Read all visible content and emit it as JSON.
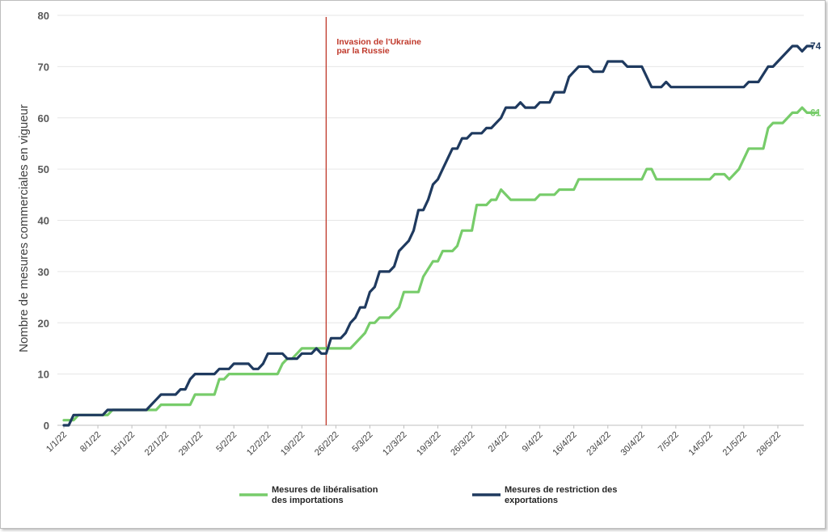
{
  "chart_data": {
    "type": "line",
    "ylabel": "Nombre de mesures commerciales en vigueur",
    "xlabel": "",
    "ylim": [
      0,
      80
    ],
    "y_ticks": [
      0,
      10,
      20,
      30,
      40,
      50,
      60,
      70,
      80
    ],
    "grid": "horizontal",
    "x_start": "2022-01-01",
    "x_end": "2022-06-01",
    "x_tick_labels": [
      "1/1/22",
      "8/1/22",
      "15/1/22",
      "22/1/22",
      "29/1/22",
      "5/2/22",
      "12/2/22",
      "19/2/22",
      "26/2/22",
      "5/3/22",
      "12/3/22",
      "19/3/22",
      "26/3/22",
      "2/4/22",
      "9/4/22",
      "16/4/22",
      "23/4/22",
      "30/4/22",
      "7/5/22",
      "14/5/22",
      "21/5/22",
      "28/5/22"
    ],
    "x_tick_dates": [
      "2022-01-01",
      "2022-01-08",
      "2022-01-15",
      "2022-01-22",
      "2022-01-29",
      "2022-02-05",
      "2022-02-12",
      "2022-02-19",
      "2022-02-26",
      "2022-03-05",
      "2022-03-12",
      "2022-03-19",
      "2022-03-26",
      "2022-04-02",
      "2022-04-09",
      "2022-04-16",
      "2022-04-23",
      "2022-04-30",
      "2022-05-07",
      "2022-05-14",
      "2022-05-21",
      "2022-05-28"
    ],
    "annotation": {
      "date": "2022-02-24",
      "lines": [
        "Invasion de l'Ukraine",
        "par la Russie"
      ],
      "color": "#c0392b"
    },
    "legend_position": "bottom",
    "series": [
      {
        "name": "Mesures de libéralisation des importations",
        "legend_lines": [
          "Mesures de libéralisation",
          "des importations"
        ],
        "color": "#77cc6a",
        "end_label": "61",
        "points": [
          [
            "2022-01-01",
            1
          ],
          [
            "2022-01-03",
            1
          ],
          [
            "2022-01-04",
            2
          ],
          [
            "2022-01-10",
            2
          ],
          [
            "2022-01-11",
            3
          ],
          [
            "2022-01-20",
            3
          ],
          [
            "2022-01-21",
            4
          ],
          [
            "2022-01-27",
            4
          ],
          [
            "2022-01-28",
            6
          ],
          [
            "2022-02-01",
            6
          ],
          [
            "2022-02-02",
            9
          ],
          [
            "2022-02-03",
            9
          ],
          [
            "2022-02-04",
            10
          ],
          [
            "2022-02-14",
            10
          ],
          [
            "2022-02-15",
            12
          ],
          [
            "2022-02-16",
            13
          ],
          [
            "2022-02-17",
            13
          ],
          [
            "2022-02-18",
            14
          ],
          [
            "2022-02-19",
            15
          ],
          [
            "2022-02-24",
            15
          ],
          [
            "2022-03-01",
            15
          ],
          [
            "2022-03-02",
            16
          ],
          [
            "2022-03-04",
            18
          ],
          [
            "2022-03-05",
            20
          ],
          [
            "2022-03-06",
            20
          ],
          [
            "2022-03-07",
            21
          ],
          [
            "2022-03-09",
            21
          ],
          [
            "2022-03-11",
            23
          ],
          [
            "2022-03-12",
            26
          ],
          [
            "2022-03-15",
            26
          ],
          [
            "2022-03-16",
            29
          ],
          [
            "2022-03-18",
            32
          ],
          [
            "2022-03-19",
            32
          ],
          [
            "2022-03-20",
            34
          ],
          [
            "2022-03-22",
            34
          ],
          [
            "2022-03-23",
            35
          ],
          [
            "2022-03-24",
            38
          ],
          [
            "2022-03-26",
            38
          ],
          [
            "2022-03-27",
            43
          ],
          [
            "2022-03-29",
            43
          ],
          [
            "2022-03-30",
            44
          ],
          [
            "2022-03-31",
            44
          ],
          [
            "2022-04-01",
            46
          ],
          [
            "2022-04-03",
            44
          ],
          [
            "2022-04-08",
            44
          ],
          [
            "2022-04-09",
            45
          ],
          [
            "2022-04-12",
            45
          ],
          [
            "2022-04-13",
            46
          ],
          [
            "2022-04-16",
            46
          ],
          [
            "2022-04-17",
            48
          ],
          [
            "2022-04-30",
            48
          ],
          [
            "2022-05-01",
            50
          ],
          [
            "2022-05-02",
            50
          ],
          [
            "2022-05-03",
            48
          ],
          [
            "2022-05-14",
            48
          ],
          [
            "2022-05-15",
            49
          ],
          [
            "2022-05-17",
            49
          ],
          [
            "2022-05-18",
            48
          ],
          [
            "2022-05-19",
            49
          ],
          [
            "2022-05-20",
            50
          ],
          [
            "2022-05-22",
            54
          ],
          [
            "2022-05-25",
            54
          ],
          [
            "2022-05-26",
            58
          ],
          [
            "2022-05-27",
            59
          ],
          [
            "2022-05-29",
            59
          ],
          [
            "2022-05-31",
            61
          ],
          [
            "2022-06-01",
            61
          ],
          [
            "2022-06-02",
            62
          ],
          [
            "2022-06-03",
            61
          ],
          [
            "2022-06-05",
            61
          ]
        ]
      },
      {
        "name": "Mesures de restriction des exportations",
        "legend_lines": [
          "Mesures de restriction des",
          "exportations"
        ],
        "color": "#1f3a5f",
        "end_label": "74",
        "points": [
          [
            "2022-01-01",
            0
          ],
          [
            "2022-01-02",
            0
          ],
          [
            "2022-01-03",
            2
          ],
          [
            "2022-01-09",
            2
          ],
          [
            "2022-01-10",
            3
          ],
          [
            "2022-01-18",
            3
          ],
          [
            "2022-01-19",
            4
          ],
          [
            "2022-01-20",
            5
          ],
          [
            "2022-01-21",
            6
          ],
          [
            "2022-01-24",
            6
          ],
          [
            "2022-01-25",
            7
          ],
          [
            "2022-01-26",
            7
          ],
          [
            "2022-01-27",
            9
          ],
          [
            "2022-01-28",
            10
          ],
          [
            "2022-02-01",
            10
          ],
          [
            "2022-02-02",
            11
          ],
          [
            "2022-02-04",
            11
          ],
          [
            "2022-02-05",
            12
          ],
          [
            "2022-02-08",
            12
          ],
          [
            "2022-02-09",
            11
          ],
          [
            "2022-02-10",
            11
          ],
          [
            "2022-02-11",
            12
          ],
          [
            "2022-02-12",
            14
          ],
          [
            "2022-02-15",
            14
          ],
          [
            "2022-02-16",
            13
          ],
          [
            "2022-02-18",
            13
          ],
          [
            "2022-02-19",
            14
          ],
          [
            "2022-02-21",
            14
          ],
          [
            "2022-02-22",
            15
          ],
          [
            "2022-02-23",
            14
          ],
          [
            "2022-02-24",
            14
          ],
          [
            "2022-02-25",
            17
          ],
          [
            "2022-02-27",
            17
          ],
          [
            "2022-02-28",
            18
          ],
          [
            "2022-03-01",
            20
          ],
          [
            "2022-03-02",
            21
          ],
          [
            "2022-03-03",
            23
          ],
          [
            "2022-03-04",
            23
          ],
          [
            "2022-03-05",
            26
          ],
          [
            "2022-03-06",
            27
          ],
          [
            "2022-03-07",
            30
          ],
          [
            "2022-03-09",
            30
          ],
          [
            "2022-03-10",
            31
          ],
          [
            "2022-03-11",
            34
          ],
          [
            "2022-03-12",
            35
          ],
          [
            "2022-03-13",
            36
          ],
          [
            "2022-03-14",
            38
          ],
          [
            "2022-03-15",
            42
          ],
          [
            "2022-03-16",
            42
          ],
          [
            "2022-03-17",
            44
          ],
          [
            "2022-03-18",
            47
          ],
          [
            "2022-03-19",
            48
          ],
          [
            "2022-03-20",
            50
          ],
          [
            "2022-03-21",
            52
          ],
          [
            "2022-03-22",
            54
          ],
          [
            "2022-03-23",
            54
          ],
          [
            "2022-03-24",
            56
          ],
          [
            "2022-03-25",
            56
          ],
          [
            "2022-03-26",
            57
          ],
          [
            "2022-03-28",
            57
          ],
          [
            "2022-03-29",
            58
          ],
          [
            "2022-03-30",
            58
          ],
          [
            "2022-04-01",
            60
          ],
          [
            "2022-04-02",
            62
          ],
          [
            "2022-04-04",
            62
          ],
          [
            "2022-04-05",
            63
          ],
          [
            "2022-04-06",
            62
          ],
          [
            "2022-04-08",
            62
          ],
          [
            "2022-04-09",
            63
          ],
          [
            "2022-04-11",
            63
          ],
          [
            "2022-04-12",
            65
          ],
          [
            "2022-04-14",
            65
          ],
          [
            "2022-04-15",
            68
          ],
          [
            "2022-04-16",
            69
          ],
          [
            "2022-04-17",
            70
          ],
          [
            "2022-04-19",
            70
          ],
          [
            "2022-04-20",
            69
          ],
          [
            "2022-04-22",
            69
          ],
          [
            "2022-04-23",
            71
          ],
          [
            "2022-04-26",
            71
          ],
          [
            "2022-04-27",
            70
          ],
          [
            "2022-04-30",
            70
          ],
          [
            "2022-05-01",
            68
          ],
          [
            "2022-05-02",
            66
          ],
          [
            "2022-05-04",
            66
          ],
          [
            "2022-05-05",
            67
          ],
          [
            "2022-05-06",
            66
          ],
          [
            "2022-05-21",
            66
          ],
          [
            "2022-05-22",
            67
          ],
          [
            "2022-05-24",
            67
          ],
          [
            "2022-05-26",
            70
          ],
          [
            "2022-05-27",
            70
          ],
          [
            "2022-05-28",
            71
          ],
          [
            "2022-05-31",
            74
          ],
          [
            "2022-06-01",
            74
          ],
          [
            "2022-06-02",
            73
          ],
          [
            "2022-06-03",
            74
          ],
          [
            "2022-06-04",
            74
          ]
        ]
      }
    ]
  }
}
